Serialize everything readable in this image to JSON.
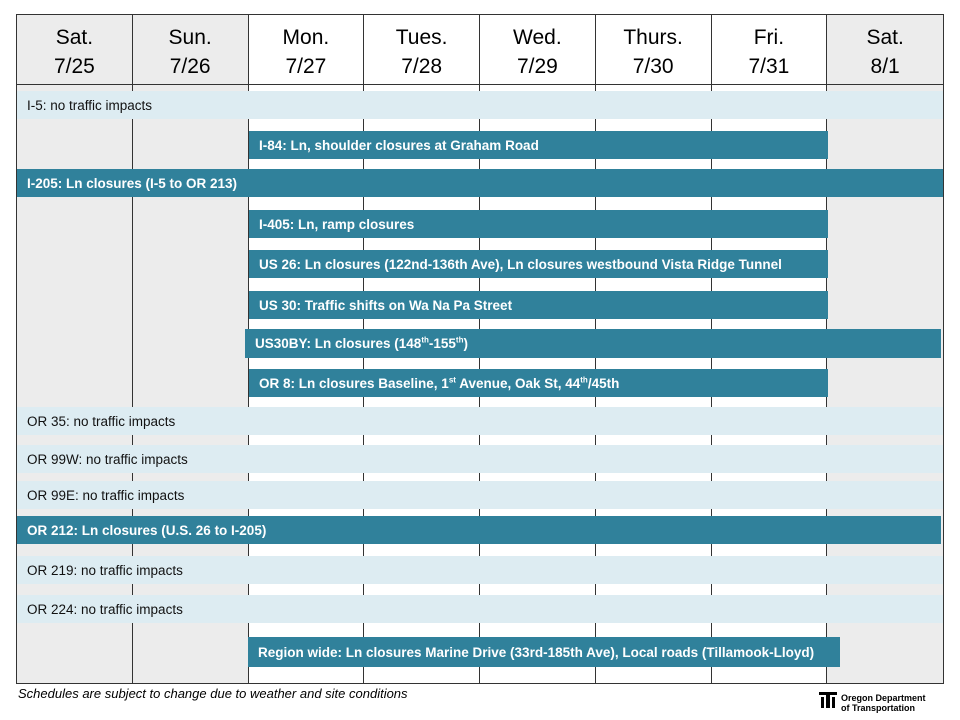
{
  "days": [
    {
      "day": "Sat.",
      "date": "7/25"
    },
    {
      "day": "Sun.",
      "date": "7/26"
    },
    {
      "day": "Mon.",
      "date": "7/27"
    },
    {
      "day": "Tues.",
      "date": "7/28"
    },
    {
      "day": "Wed.",
      "date": "7/29"
    },
    {
      "day": "Thurs.",
      "date": "7/30"
    },
    {
      "day": "Fri.",
      "date": "7/31"
    },
    {
      "day": "Sat.",
      "date": "8/1"
    }
  ],
  "rows": [
    {
      "label": "I-5: no traffic impacts",
      "style": "light",
      "start_day": "Sat. 7/25",
      "end_day": "Sat. 8/1"
    },
    {
      "label": "I-84: Ln, shoulder closures at Graham Road",
      "style": "dark",
      "start_day": "Mon. 7/27",
      "end_day": "Fri. 7/31"
    },
    {
      "label": "I-205: Ln closures (I-5 to OR 213)",
      "style": "dark",
      "start_day": "Sat. 7/25",
      "end_day": "Sat. 8/1"
    },
    {
      "label": "I-405: Ln, ramp closures",
      "style": "dark",
      "start_day": "Mon. 7/27",
      "end_day": "Fri. 7/31"
    },
    {
      "label": "US 26: Ln closures (122nd-136th Ave), Ln closures westbound Vista Ridge Tunnel",
      "style": "dark",
      "start_day": "Mon. 7/27",
      "end_day": "Fri. 7/31"
    },
    {
      "label": "US 30: Traffic shifts on Wa Na Pa Street",
      "style": "dark",
      "start_day": "Mon. 7/27",
      "end_day": "Fri. 7/31"
    },
    {
      "label_parts": [
        "US30BY:  Ln closures (148",
        "th",
        "-155",
        "th",
        ")"
      ],
      "style": "dark",
      "start_day": "Mon. 7/27",
      "end_day": "Sat. 8/1"
    },
    {
      "label_parts": [
        "OR 8:  Ln closures Baseline, 1",
        "st",
        " Avenue, Oak St, 44",
        "th",
        "/45th"
      ],
      "style": "dark",
      "start_day": "Mon. 7/27",
      "end_day": "Fri. 7/31"
    },
    {
      "label": "OR 35: no traffic impacts",
      "style": "light",
      "start_day": "Sat. 7/25",
      "end_day": "Sat. 8/1"
    },
    {
      "label": "OR 99W: no traffic impacts",
      "style": "light",
      "start_day": "Sat. 7/25",
      "end_day": "Sat. 8/1"
    },
    {
      "label": "OR 99E: no traffic impacts",
      "style": "light",
      "start_day": "Sat. 7/25",
      "end_day": "Sat. 8/1"
    },
    {
      "label": "OR 212:  Ln closures (U.S. 26 to I-205)",
      "style": "dark",
      "start_day": "Sat. 7/25",
      "end_day": "Sat. 8/1"
    },
    {
      "label": "OR 219: no traffic impacts",
      "style": "light",
      "start_day": "Sat. 7/25",
      "end_day": "Sat. 8/1"
    },
    {
      "label": "OR 224: no traffic impacts",
      "style": "light",
      "start_day": "Sat. 7/25",
      "end_day": "Sat. 8/1"
    },
    {
      "label": "Region wide: Ln closures Marine Drive (33rd-185th Ave), Local roads (Tillamook-Lloyd)",
      "style": "dark",
      "start_day": "Mon. 7/27",
      "end_day": "Fri. 7/31"
    }
  ],
  "footer": "Schedules are subject to change due to weather and site conditions",
  "logo": {
    "line1": "Oregon Department",
    "line2": "of Transportation",
    "icon": "odot-logo-icon"
  },
  "colors": {
    "dark_bar": "#30819b",
    "light_bar": "#ddecf2",
    "weekend": "#ececec"
  }
}
